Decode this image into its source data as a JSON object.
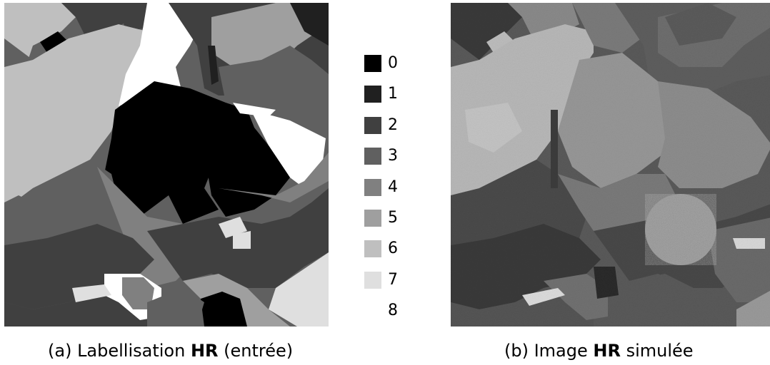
{
  "legend": {
    "items": [
      {
        "label": "0",
        "color": "#000000"
      },
      {
        "label": "1",
        "color": "#202020"
      },
      {
        "label": "2",
        "color": "#404040"
      },
      {
        "label": "3",
        "color": "#606060"
      },
      {
        "label": "4",
        "color": "#808080"
      },
      {
        "label": "5",
        "color": "#9f9f9f"
      },
      {
        "label": "6",
        "color": "#bfbfbf"
      },
      {
        "label": "7",
        "color": "#dfdfdf"
      },
      {
        "label": "8",
        "color": "#ffffff"
      }
    ]
  },
  "captions": {
    "a": {
      "prefix": "(a) Labellisation ",
      "bold": "HR",
      "suffix": " (entrée)"
    },
    "b": {
      "prefix": "(b) Image ",
      "bold": "HR",
      "suffix": " simulée"
    }
  }
}
